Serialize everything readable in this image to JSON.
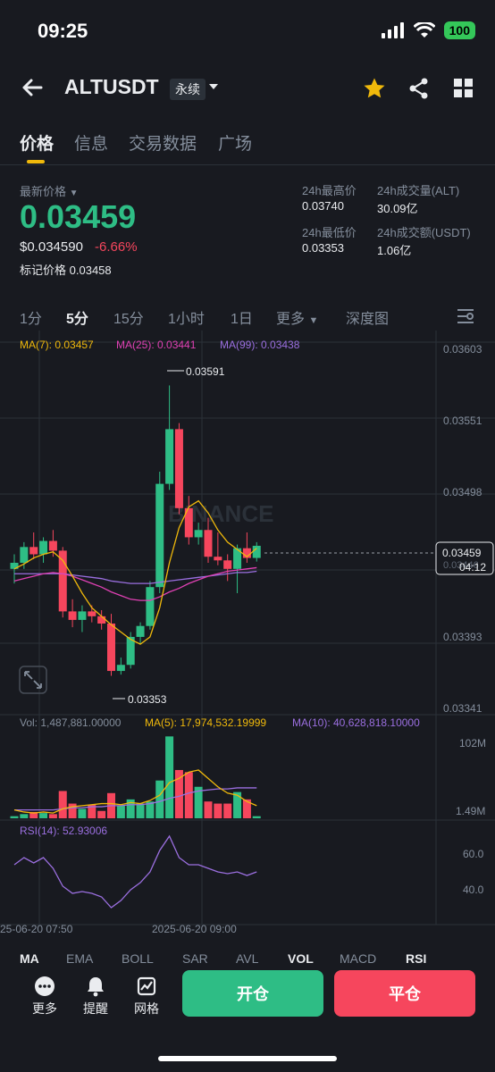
{
  "status": {
    "time": "09:25",
    "battery": "100"
  },
  "header": {
    "symbol": "ALTUSDT",
    "contract_type": "永续"
  },
  "tabs": [
    {
      "label": "价格"
    },
    {
      "label": "信息"
    },
    {
      "label": "交易数据"
    },
    {
      "label": "广场"
    }
  ],
  "price": {
    "latest_label": "最新价格",
    "last": "0.03459",
    "usd": "$0.034590",
    "change_pct": "-6.66%",
    "mark_label": "标记价格",
    "mark": "0.03458"
  },
  "stats": {
    "high_label": "24h最高价",
    "high": "0.03740",
    "low_label": "24h最低价",
    "low": "0.03353",
    "vol_label": "24h成交量(ALT)",
    "vol": "30.09亿",
    "turnover_label": "24h成交额(USDT)",
    "turnover": "1.06亿"
  },
  "intervals": [
    "1分",
    "5分",
    "15分",
    "1小时",
    "1日",
    "更多",
    "深度图"
  ],
  "ma_legend": {
    "ma7": "MA(7): 0.03457",
    "ma25": "MA(25): 0.03441",
    "ma99": "MA(99): 0.03438"
  },
  "price_axis": [
    "0.03603",
    "0.03551",
    "0.03498",
    "0.03393",
    "0.03341"
  ],
  "markers": {
    "high": "0.03591",
    "low": "0.03353",
    "current": "0.03459",
    "countdown": "04:12",
    "behind": "0.03446"
  },
  "watermark": "BINANCE",
  "volume": {
    "vol_label": "Vol: 1,487,881.00000",
    "ma5_label": "MA(5): 17,974,532.19999",
    "ma10_label": "MA(10): 40,628,818.10000",
    "axis_top": "102M",
    "axis_bottom": "1.49M"
  },
  "rsi": {
    "label": "RSI(14): 52.93006",
    "level_high": "60.0",
    "level_low": "40.0"
  },
  "time_axis": [
    "25-06-20 07:50",
    "2025-06-20 09:00"
  ],
  "indicators": [
    "MA",
    "EMA",
    "BOLL",
    "SAR",
    "AVL",
    "VOL",
    "MACD",
    "RSI"
  ],
  "bottom_nav": {
    "more": "更多",
    "alert": "提醒",
    "grid": "网格"
  },
  "buttons": {
    "open": "开仓",
    "close": "平仓"
  },
  "colors": {
    "up": "#2ebd85",
    "down": "#f6465d",
    "accent": "#f0b90b",
    "ma7": "#f0b90b",
    "ma25": "#e041b4",
    "ma99": "#9b6fe0"
  },
  "chart_data": {
    "type": "candlestick",
    "y_range": [
      0.0332,
      0.0362
    ],
    "candles": [
      {
        "o": 0.0344,
        "h": 0.03452,
        "l": 0.03428,
        "c": 0.03445
      },
      {
        "o": 0.03445,
        "h": 0.03462,
        "l": 0.0344,
        "c": 0.03458
      },
      {
        "o": 0.03458,
        "h": 0.0347,
        "l": 0.03448,
        "c": 0.03452
      },
      {
        "o": 0.03452,
        "h": 0.03466,
        "l": 0.03445,
        "c": 0.03463
      },
      {
        "o": 0.03463,
        "h": 0.03472,
        "l": 0.0345,
        "c": 0.03455
      },
      {
        "o": 0.03455,
        "h": 0.03458,
        "l": 0.034,
        "c": 0.03405
      },
      {
        "o": 0.03405,
        "h": 0.03415,
        "l": 0.03392,
        "c": 0.03398
      },
      {
        "o": 0.03398,
        "h": 0.0341,
        "l": 0.03388,
        "c": 0.03405
      },
      {
        "o": 0.03405,
        "h": 0.0341,
        "l": 0.03396,
        "c": 0.03401
      },
      {
        "o": 0.03401,
        "h": 0.03406,
        "l": 0.0339,
        "c": 0.03395
      },
      {
        "o": 0.03395,
        "h": 0.03403,
        "l": 0.03352,
        "c": 0.03356
      },
      {
        "o": 0.03356,
        "h": 0.03367,
        "l": 0.03353,
        "c": 0.03361
      },
      {
        "o": 0.03361,
        "h": 0.03388,
        "l": 0.03358,
        "c": 0.03384
      },
      {
        "o": 0.03384,
        "h": 0.03396,
        "l": 0.03378,
        "c": 0.03393
      },
      {
        "o": 0.03393,
        "h": 0.0343,
        "l": 0.0339,
        "c": 0.03425
      },
      {
        "o": 0.03425,
        "h": 0.0352,
        "l": 0.0342,
        "c": 0.0351
      },
      {
        "o": 0.0351,
        "h": 0.03591,
        "l": 0.03505,
        "c": 0.03555
      },
      {
        "o": 0.03555,
        "h": 0.0356,
        "l": 0.03485,
        "c": 0.0349
      },
      {
        "o": 0.0349,
        "h": 0.035,
        "l": 0.0346,
        "c": 0.03466
      },
      {
        "o": 0.03466,
        "h": 0.03478,
        "l": 0.0346,
        "c": 0.03472
      },
      {
        "o": 0.03472,
        "h": 0.03482,
        "l": 0.03445,
        "c": 0.0345
      },
      {
        "o": 0.0345,
        "h": 0.0347,
        "l": 0.03443,
        "c": 0.03447
      },
      {
        "o": 0.03447,
        "h": 0.03452,
        "l": 0.0343,
        "c": 0.0344
      },
      {
        "o": 0.0344,
        "h": 0.0346,
        "l": 0.0342,
        "c": 0.03457
      },
      {
        "o": 0.03457,
        "h": 0.0347,
        "l": 0.03445,
        "c": 0.03449
      },
      {
        "o": 0.03449,
        "h": 0.03462,
        "l": 0.03446,
        "c": 0.03459
      }
    ],
    "ma7": [
      0.0344,
      0.03444,
      0.03449,
      0.03452,
      0.03454,
      0.03447,
      0.03434,
      0.0342,
      0.03408,
      0.03401,
      0.03394,
      0.03388,
      0.03382,
      0.03378,
      0.03384,
      0.03408,
      0.03445,
      0.03474,
      0.03491,
      0.03496,
      0.03486,
      0.03472,
      0.03462,
      0.03456,
      0.0345,
      0.03457
    ],
    "ma25": [
      0.0343,
      0.03432,
      0.03434,
      0.03436,
      0.03437,
      0.03436,
      0.03434,
      0.03431,
      0.03428,
      0.03425,
      0.03421,
      0.03418,
      0.03415,
      0.03414,
      0.03414,
      0.03417,
      0.03421,
      0.03424,
      0.03428,
      0.03431,
      0.03434,
      0.03436,
      0.03438,
      0.03439,
      0.0344,
      0.03441
    ],
    "ma99": [
      0.03436,
      0.03436,
      0.03436,
      0.03436,
      0.03436,
      0.03436,
      0.03435,
      0.03434,
      0.03433,
      0.03432,
      0.0343,
      0.03429,
      0.03428,
      0.03428,
      0.03428,
      0.03429,
      0.0343,
      0.03431,
      0.03432,
      0.03433,
      0.03434,
      0.03435,
      0.03436,
      0.03437,
      0.03437,
      0.03438
    ],
    "volume": [
      2,
      4,
      6,
      5,
      4,
      26,
      14,
      9,
      13,
      7,
      24,
      12,
      18,
      14,
      16,
      36,
      78,
      46,
      44,
      30,
      16,
      14,
      14,
      25,
      18,
      2
    ],
    "vol_ma5": [
      8,
      6,
      5,
      6,
      5,
      9,
      11,
      12,
      13,
      14,
      14,
      13,
      15,
      14,
      17,
      22,
      34,
      38,
      44,
      46,
      38,
      30,
      24,
      22,
      16,
      12
    ],
    "vol_ma10": [
      8,
      8,
      8,
      8,
      8,
      9,
      10,
      10,
      11,
      11,
      12,
      12,
      13,
      13,
      14,
      16,
      19,
      21,
      24,
      26,
      27,
      28,
      28,
      29,
      29,
      29
    ],
    "rsi": [
      54,
      58,
      55,
      58,
      52,
      42,
      38,
      39,
      38,
      36,
      30,
      34,
      40,
      44,
      50,
      62,
      70,
      58,
      54,
      54,
      52,
      50,
      49,
      50,
      48,
      50
    ]
  }
}
